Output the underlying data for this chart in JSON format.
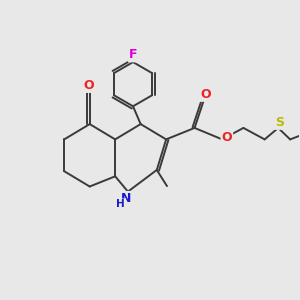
{
  "background_color": "#e8e8e8",
  "bond_color": "#3a3a3a",
  "bond_width": 1.4,
  "atom_colors": {
    "F": "#dd00dd",
    "O": "#ee2222",
    "N": "#1a1acc",
    "S": "#bbbb00",
    "C": "#3a3a3a"
  },
  "font_size_atom": 8.5,
  "figsize": [
    3.0,
    3.0
  ],
  "dpi": 100
}
